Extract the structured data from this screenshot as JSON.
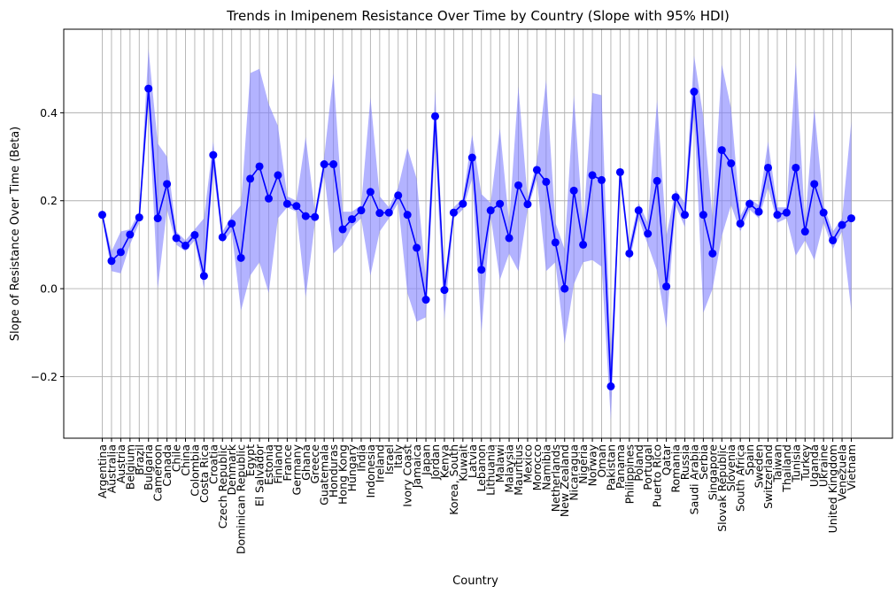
{
  "chart_data": {
    "type": "line",
    "title": "Trends in Imipenem Resistance Over Time by Country (Slope with 95% HDI)",
    "xlabel": "Country",
    "ylabel": "Slope of Resistance Over Time (Beta)",
    "ylim": [
      -0.34,
      0.59
    ],
    "yticks": [
      -0.2,
      0.0,
      0.2,
      0.4
    ],
    "ytick_labels": [
      "−0.2",
      "0.0",
      "0.2",
      "0.4"
    ],
    "grid": true,
    "line_color": "#0000ff",
    "band_color": "#8080ff",
    "categories": [
      "Argentina",
      "Australia",
      "Austria",
      "Belgium",
      "Brazil",
      "Bulgaria",
      "Cameroon",
      "Canada",
      "Chile",
      "China",
      "Colombia",
      "Costa Rica",
      "Croatia",
      "Czech Republic",
      "Denmark",
      "Dominican Republic",
      "Egypt",
      "El Salvador",
      "Estonia",
      "Finland",
      "France",
      "Germany",
      "Ghana",
      "Greece",
      "Guatemala",
      "Honduras",
      "Hong Kong",
      "Hungary",
      "India",
      "Indonesia",
      "Ireland",
      "Israel",
      "Italy",
      "Ivory Coast",
      "Jamaica",
      "Japan",
      "Jordan",
      "Kenya",
      "Korea, South",
      "Kuwait",
      "Latvia",
      "Lebanon",
      "Lithuania",
      "Malawi",
      "Malaysia",
      "Mauritius",
      "Mexico",
      "Morocco",
      "Namibia",
      "Netherlands",
      "New Zealand",
      "Nicaragua",
      "Nigeria",
      "Norway",
      "Oman",
      "Pakistan",
      "Panama",
      "Philippines",
      "Poland",
      "Portugal",
      "Puerto Rico",
      "Qatar",
      "Romania",
      "Russia",
      "Saudi Arabia",
      "Serbia",
      "Singapore",
      "Slovak Republic",
      "Slovenia",
      "South Africa",
      "Spain",
      "Sweden",
      "Switzerland",
      "Taiwan",
      "Thailand",
      "Tunisia",
      "Turkey",
      "Uganda",
      "Ukraine",
      "United Kingdom",
      "Venezuela",
      "Vietnam"
    ],
    "series": [
      {
        "values": [
          0.168,
          0.063,
          0.083,
          0.123,
          0.162,
          0.455,
          0.16,
          0.238,
          0.115,
          0.098,
          0.122,
          0.029,
          0.304,
          0.117,
          0.148,
          0.07,
          0.25,
          0.278,
          0.205,
          0.258,
          0.193,
          0.188,
          0.165,
          0.163,
          0.283,
          0.283,
          0.135,
          0.158,
          0.178,
          0.22,
          0.172,
          0.173,
          0.212,
          0.168,
          0.093,
          -0.025,
          0.392,
          -0.003,
          0.173,
          0.193,
          0.298,
          0.043,
          0.178,
          0.193,
          0.115,
          0.235,
          0.192,
          0.27,
          0.243,
          0.105,
          0.0,
          0.223,
          0.1,
          0.258,
          0.247,
          -0.222,
          0.265,
          0.08,
          0.178,
          0.125,
          0.245,
          0.005,
          0.208,
          0.168,
          0.448,
          0.168,
          0.08,
          0.315,
          0.285,
          0.148,
          0.193,
          0.175,
          0.275,
          0.168,
          0.173,
          0.275,
          0.13,
          0.238,
          0.173,
          0.11,
          0.145,
          0.16
        ],
        "hdi_lower": [
          0.16,
          0.04,
          0.035,
          0.1,
          0.15,
          0.42,
          0.0,
          0.18,
          0.1,
          0.085,
          0.11,
          0.0,
          0.27,
          0.105,
          0.13,
          -0.05,
          0.03,
          0.06,
          -0.01,
          0.16,
          0.185,
          0.175,
          -0.02,
          0.15,
          0.26,
          0.08,
          0.1,
          0.14,
          0.16,
          0.03,
          0.13,
          0.16,
          0.195,
          -0.01,
          -0.075,
          -0.065,
          0.33,
          -0.07,
          0.16,
          0.18,
          0.25,
          -0.1,
          0.165,
          0.02,
          0.08,
          0.04,
          0.18,
          0.25,
          0.04,
          0.06,
          -0.125,
          0.01,
          0.06,
          0.065,
          0.05,
          -0.3,
          0.25,
          0.06,
          0.16,
          0.1,
          0.04,
          -0.09,
          0.19,
          0.14,
          0.4,
          -0.055,
          0.0,
          0.12,
          0.19,
          0.13,
          0.18,
          0.16,
          0.23,
          0.15,
          0.16,
          0.075,
          0.11,
          0.065,
          0.15,
          0.09,
          0.13,
          -0.05
        ],
        "hdi_upper": [
          0.175,
          0.085,
          0.13,
          0.135,
          0.175,
          0.545,
          0.33,
          0.3,
          0.13,
          0.11,
          0.135,
          0.16,
          0.335,
          0.13,
          0.165,
          0.19,
          0.49,
          0.5,
          0.42,
          0.37,
          0.21,
          0.2,
          0.345,
          0.175,
          0.3,
          0.49,
          0.175,
          0.175,
          0.19,
          0.435,
          0.21,
          0.185,
          0.23,
          0.32,
          0.25,
          0.02,
          0.45,
          0.02,
          0.185,
          0.205,
          0.35,
          0.215,
          0.195,
          0.365,
          0.15,
          0.46,
          0.205,
          0.29,
          0.475,
          0.15,
          0.09,
          0.44,
          0.14,
          0.445,
          0.44,
          -0.15,
          0.28,
          0.1,
          0.195,
          0.15,
          0.43,
          0.12,
          0.225,
          0.195,
          0.53,
          0.39,
          0.16,
          0.51,
          0.41,
          0.165,
          0.205,
          0.19,
          0.335,
          0.185,
          0.185,
          0.515,
          0.15,
          0.41,
          0.19,
          0.13,
          0.16,
          0.38
        ]
      }
    ]
  }
}
